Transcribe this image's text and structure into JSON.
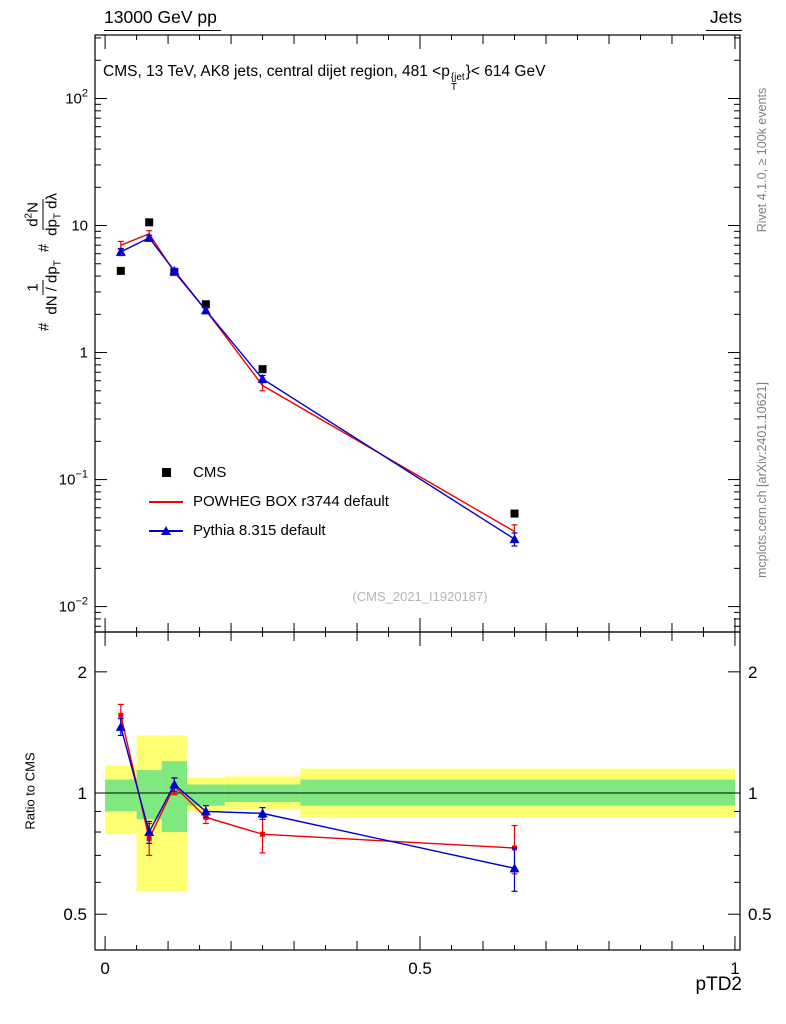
{
  "header": {
    "left": "13000 GeV pp",
    "right": "Jets"
  },
  "title": {
    "pre": "CMS, 13 TeV, AK8 jets, central dijet region, 481 <p",
    "sup": "{jet",
    "sub": "T",
    "post": "}< 614 GeV"
  },
  "watermark": "(CMS_2021_I1920187)",
  "side_notes": {
    "top_right": "Rivet 4.1.0, ≥ 100k events",
    "bottom_right": "mcplots.cern.ch [arXiv:2401.10621]"
  },
  "ylabel_main": {
    "hash1": "#",
    "hash2": "#",
    "frac1": {
      "num": "1",
      "den": "dN / dp",
      "den_sub": "T"
    },
    "frac2": {
      "num": "d",
      "num_sup": "2",
      "num_post": "N",
      "den": "dp",
      "den_sub": "T",
      "den_post": " dλ"
    }
  },
  "legend": {
    "items": [
      {
        "label": "CMS",
        "marker": "black-square"
      },
      {
        "label": "POWHEG BOX r3744 default",
        "marker": "red-line"
      },
      {
        "label": "Pythia 8.315 default",
        "marker": "blue-triangle-line"
      }
    ]
  },
  "colors": {
    "cms_black": "#000000",
    "powheg_red": "#ee0000",
    "pythia_blue": "#0000cc",
    "band_yellow": "#ffff72",
    "band_green": "#7fe87f",
    "gray_text": "#808080",
    "watermark": "#b5b5b5"
  },
  "axes": {
    "x": {
      "range": [
        -0.016,
        1.008
      ],
      "ticks": [
        {
          "v": 0,
          "label": "0"
        },
        {
          "v": 0.5,
          "label": "0.5"
        },
        {
          "v": 1,
          "label": "1"
        }
      ]
    },
    "y_main": {
      "log_range": [
        -2.2,
        2.5
      ],
      "ticks": [
        {
          "v": 100,
          "base": "10",
          "exp": "2"
        },
        {
          "v": 10,
          "base": "10",
          "exp": ""
        },
        {
          "v": 1,
          "base": "1",
          "exp": ""
        },
        {
          "v": 0.1,
          "base": "10",
          "exp": "−1"
        },
        {
          "v": 0.01,
          "base": "10",
          "exp": "−2"
        }
      ]
    },
    "y_ratio": {
      "log_range": [
        -0.39,
        0.4
      ],
      "ticks": [
        {
          "v": 2,
          "label": "2"
        },
        {
          "v": 1,
          "label": "1"
        },
        {
          "v": 0.5,
          "label": "0.5"
        }
      ],
      "minor": [
        0.6,
        0.7,
        0.8,
        0.9
      ]
    }
  },
  "chart_data": [
    {
      "type": "line",
      "title": "CMS, 13 TeV, AK8 jets, central dijet region, 481 < pT^{jet} < 614 GeV",
      "xlabel": "pTD2",
      "ylabel": "# 1/(dN/dpT) d²N/(dpT dλ)",
      "xlim": [
        -0.016,
        1.008
      ],
      "ylim": [
        0.0063,
        316
      ],
      "yscale": "log",
      "x": [
        0.025,
        0.07,
        0.11,
        0.16,
        0.25,
        0.65
      ],
      "series": [
        {
          "name": "CMS",
          "color": "#000000",
          "marker": "square",
          "line": false,
          "values": [
            4.4,
            10.6,
            4.3,
            2.4,
            0.74,
            0.054
          ],
          "yerr": [
            0.15,
            0.3,
            0.15,
            0.08,
            0.03,
            0.003
          ]
        },
        {
          "name": "POWHEG BOX r3744 default",
          "color": "#ee0000",
          "marker": "none",
          "line": true,
          "values": [
            7.0,
            8.6,
            4.3,
            2.15,
            0.55,
            0.039
          ],
          "yerr": [
            0.5,
            0.5,
            0.25,
            0.12,
            0.05,
            0.005
          ]
        },
        {
          "name": "Pythia 8.315 default",
          "color": "#0000cc",
          "marker": "triangle",
          "line": true,
          "values": [
            6.2,
            8.0,
            4.4,
            2.15,
            0.62,
            0.034
          ],
          "yerr": [
            0.4,
            0.4,
            0.2,
            0.1,
            0.04,
            0.004
          ]
        }
      ],
      "legend_position": "middle-left",
      "grid": false
    },
    {
      "type": "line",
      "title": "Ratio panel",
      "xlabel": "pTD2",
      "ylabel": "Ratio to CMS",
      "xlim": [
        -0.016,
        1.008
      ],
      "ylim": [
        0.41,
        2.5
      ],
      "yscale": "log",
      "x": [
        0.025,
        0.07,
        0.11,
        0.16,
        0.25,
        0.65
      ],
      "reference_line": 1,
      "bands": {
        "edges": [
          0,
          0.05,
          0.09,
          0.13,
          0.19,
          0.31,
          1.0
        ],
        "yellow": [
          [
            0.79,
            1.17
          ],
          [
            0.57,
            1.39
          ],
          [
            0.57,
            1.39
          ],
          [
            0.9,
            1.09
          ],
          [
            0.91,
            1.1
          ],
          [
            0.87,
            1.15
          ]
        ],
        "green": [
          [
            0.9,
            1.08
          ],
          [
            0.86,
            1.14
          ],
          [
            0.8,
            1.2
          ],
          [
            0.93,
            1.05
          ],
          [
            0.95,
            1.05
          ],
          [
            0.93,
            1.08
          ]
        ]
      },
      "series": [
        {
          "name": "POWHEG BOX r3744 default / CMS",
          "color": "#ee0000",
          "marker": "square-small",
          "line": true,
          "values": [
            1.56,
            0.77,
            1.04,
            0.87,
            0.79,
            0.73
          ],
          "yerr": [
            0.1,
            0.07,
            0.05,
            0.03,
            0.08,
            0.1
          ]
        },
        {
          "name": "Pythia 8.315 default / CMS",
          "color": "#0000cc",
          "marker": "triangle",
          "line": true,
          "values": [
            1.46,
            0.8,
            1.05,
            0.9,
            0.89,
            0.65
          ],
          "yerr": [
            0.07,
            0.05,
            0.04,
            0.03,
            0.03,
            0.08
          ]
        }
      ],
      "grid": false
    }
  ]
}
